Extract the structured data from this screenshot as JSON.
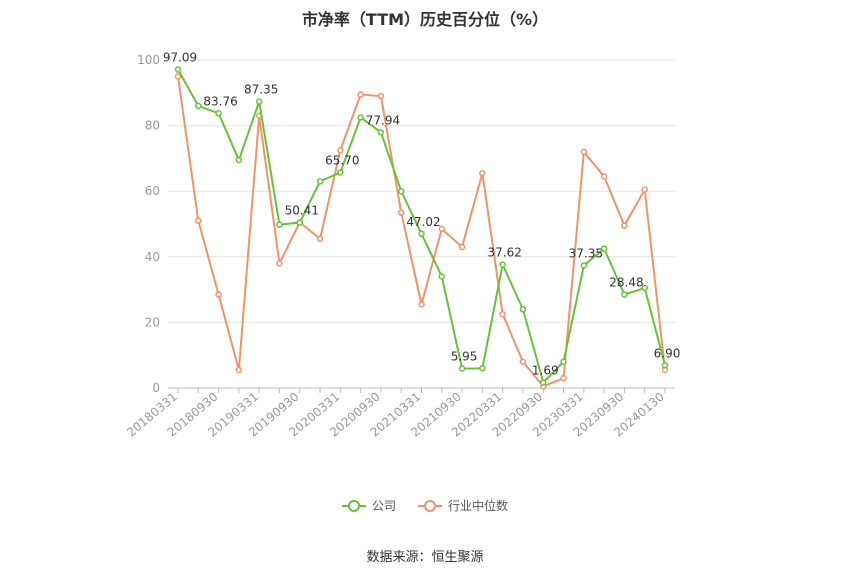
{
  "chart_data": {
    "type": "line",
    "title": "市净率（TTM）历史百分位（%）",
    "source": "数据来源：恒生聚源",
    "ylim": [
      0,
      100
    ],
    "yticks": [
      0,
      20,
      40,
      60,
      80,
      100
    ],
    "grid": true,
    "legend_position": "bottom",
    "x_tick_labels": [
      "20180331",
      "20180930",
      "20190331",
      "20190930",
      "20200331",
      "20200930",
      "20210331",
      "20210930",
      "20220331",
      "20220930",
      "20230331",
      "20230930",
      "20240130"
    ],
    "x": [
      "20180331",
      "20180630",
      "20180930",
      "20181231",
      "20190331",
      "20190630",
      "20190930",
      "20191231",
      "20200331",
      "20200630",
      "20200930",
      "20201231",
      "20210331",
      "20210630",
      "20210930",
      "20211231",
      "20220331",
      "20220630",
      "20220930",
      "20221231",
      "20230331",
      "20230630",
      "20230930",
      "20231231",
      "20240130"
    ],
    "series": [
      {
        "name": "公司",
        "color": "#67c23a",
        "values": [
          97.09,
          86.0,
          83.76,
          69.5,
          87.35,
          49.8,
          50.41,
          63.0,
          65.7,
          82.5,
          77.94,
          60.0,
          47.02,
          34.0,
          5.95,
          6.0,
          37.62,
          24.0,
          1.69,
          8.0,
          37.35,
          42.5,
          28.48,
          30.5,
          6.9
        ],
        "labels": [
          "97.09",
          "",
          "83.76",
          "",
          "87.35",
          "",
          "50.41",
          "",
          "65.70",
          "",
          "77.94",
          "",
          "47.02",
          "",
          "5.95",
          "",
          "37.62",
          "",
          "1.69",
          "",
          "37.35",
          "",
          "28.48",
          "",
          "6.90"
        ]
      },
      {
        "name": "行业中位数",
        "color": "#f0936b",
        "values": [
          95.0,
          51.0,
          28.5,
          5.5,
          83.0,
          38.0,
          50.5,
          45.5,
          72.5,
          89.5,
          89.0,
          53.5,
          25.5,
          48.5,
          43.0,
          65.5,
          22.5,
          8.0,
          0.5,
          3.0,
          72.0,
          64.5,
          49.5,
          60.5,
          5.5
        ]
      }
    ]
  }
}
